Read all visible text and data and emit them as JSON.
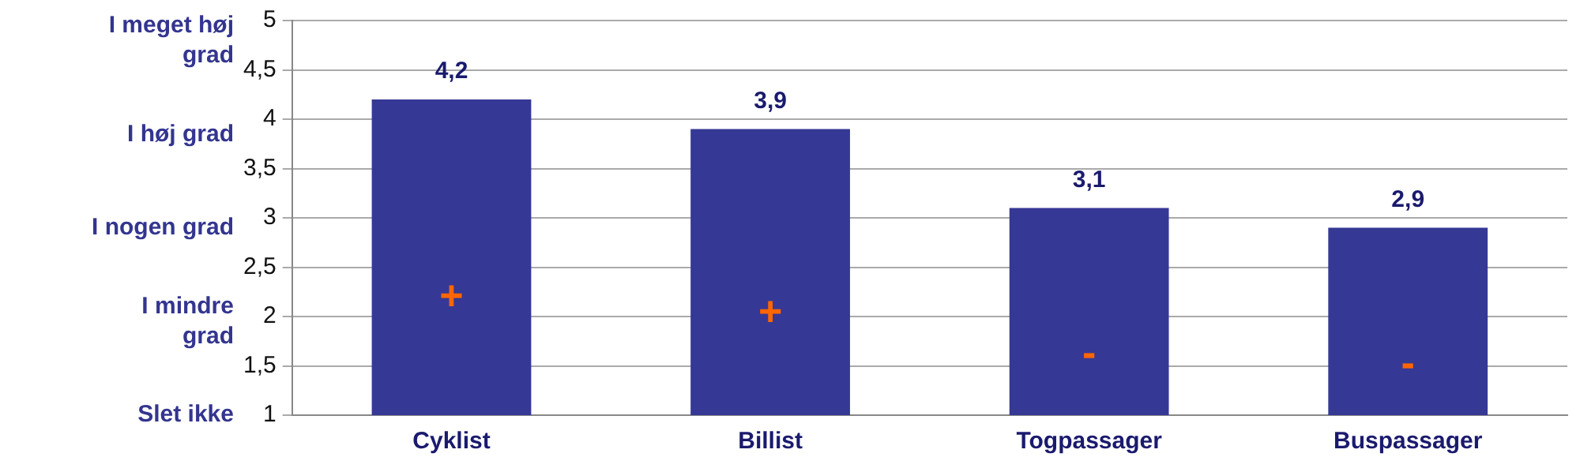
{
  "chart_data": {
    "type": "bar",
    "categories": [
      "Cyklist",
      "Billist",
      "Togpassager",
      "Buspassager"
    ],
    "series": [
      {
        "color": "#363895",
        "values": [
          4.2,
          3.9,
          3.1,
          2.9
        ],
        "value_labels": [
          "4,2",
          "3,9",
          "3,1",
          "2,9"
        ]
      }
    ],
    "ylim": [
      1,
      5
    ],
    "yticks": [
      1,
      {
        "value": 1.5,
        "label": "1,5"
      },
      2,
      {
        "value": 2.5,
        "label": "2,5"
      },
      3,
      {
        "value": 3.5,
        "label": "3,5"
      },
      4,
      {
        "value": 4.5,
        "label": "4,5"
      },
      5
    ],
    "annotations": [
      "I meget høj grad",
      "I høj grad",
      "I nogen grad",
      "I mindre grad",
      "Slet ikke",
      "+",
      "+",
      "-",
      "-"
    ],
    "grid": "y",
    "legend": false
  }
}
